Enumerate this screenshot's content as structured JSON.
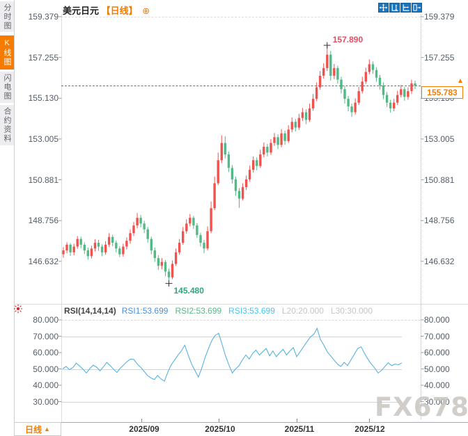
{
  "sidebar": {
    "items": [
      {
        "label": "分时图",
        "active": false
      },
      {
        "label": "K线图",
        "active": true
      },
      {
        "label": "闪电图",
        "active": false
      },
      {
        "label": "合约资料",
        "active": false
      }
    ]
  },
  "header": {
    "symbol": "美元日元",
    "period": "【日线】",
    "add_icon": "⊕"
  },
  "toolbar": {
    "icons": [
      "pan-icon",
      "y-axis-scale-icon",
      "x-axis-scale-icon",
      "exit-chart-icon"
    ]
  },
  "main_chart": {
    "y_axis_labels": [
      "159.379",
      "157.255",
      "155.130",
      "153.005",
      "150.881",
      "148.756",
      "146.632"
    ],
    "high_annotation": "157.890",
    "low_annotation": "145.480",
    "current_price": "155.783",
    "arrow_icon": "▲",
    "colors": {
      "up": "#ef5350",
      "down": "#53b987",
      "current_line": "#1e86e0",
      "high_text": "#ee4a5f",
      "low_text": "#2aa87f",
      "badge": "#f57c00"
    }
  },
  "rsi_panel": {
    "title": "RSI(14,14,14)",
    "line_color": "#58b2e2",
    "values": [
      {
        "label": "RSI1:53.699",
        "color": "#4a90d9"
      },
      {
        "label": "RSI2:53.699",
        "color": "#53b987"
      },
      {
        "label": "RSI3:53.699",
        "color": "#45c5f2"
      },
      {
        "label": "L20:20.000",
        "color": "#c4c4cc"
      },
      {
        "label": "L30:30.000",
        "color": "#c4c4cc"
      }
    ],
    "y_axis_labels": [
      "80.000",
      "70.000",
      "60.000",
      "50.000",
      "40.000",
      "30.000"
    ]
  },
  "x_axis": {
    "labels": [
      "2025/09",
      "2025/10",
      "2025/11",
      "2025/12"
    ]
  },
  "footer": {
    "period_label": "日线",
    "arrow": "▲"
  },
  "watermark": "FX678",
  "chart_data": {
    "type": "candlestick+line",
    "symbol": "美元日元 (USD/JPY)",
    "interval": "日线 daily",
    "price_axis": [
      159.379,
      157.255,
      155.13,
      153.005,
      150.881,
      148.756,
      146.632
    ],
    "high": 157.89,
    "low": 145.48,
    "last": 155.783,
    "x_ticks": [
      "2025/09",
      "2025/10",
      "2025/11",
      "2025/12"
    ],
    "ohlc_order": "open,high,low,close",
    "candles": [
      [
        147.0,
        147.38,
        146.82,
        147.2
      ],
      [
        147.2,
        147.62,
        147.05,
        147.5
      ],
      [
        147.5,
        147.58,
        146.92,
        147.1
      ],
      [
        147.1,
        147.55,
        146.95,
        147.4
      ],
      [
        147.4,
        147.95,
        147.28,
        147.8
      ],
      [
        147.8,
        147.92,
        147.32,
        147.5
      ],
      [
        147.5,
        147.62,
        147.02,
        147.2
      ],
      [
        147.2,
        147.35,
        146.72,
        146.9
      ],
      [
        146.9,
        147.45,
        146.78,
        147.3
      ],
      [
        147.3,
        147.78,
        147.15,
        147.6
      ],
      [
        147.6,
        147.75,
        147.18,
        147.4
      ],
      [
        147.4,
        147.52,
        146.9,
        147.1
      ],
      [
        147.1,
        147.68,
        146.98,
        147.5
      ],
      [
        147.5,
        148.1,
        147.38,
        147.9
      ],
      [
        147.9,
        148.02,
        147.42,
        147.6
      ],
      [
        147.6,
        147.72,
        147.1,
        147.3
      ],
      [
        147.3,
        147.42,
        146.85,
        147.0
      ],
      [
        147.0,
        147.55,
        146.88,
        147.4
      ],
      [
        147.4,
        147.88,
        147.25,
        147.7
      ],
      [
        147.7,
        148.28,
        147.55,
        148.1
      ],
      [
        148.1,
        148.68,
        147.95,
        148.5
      ],
      [
        148.5,
        149.15,
        148.35,
        148.9
      ],
      [
        148.9,
        149.05,
        148.4,
        148.6
      ],
      [
        148.6,
        148.75,
        148.1,
        148.3
      ],
      [
        148.3,
        148.42,
        147.6,
        147.8
      ],
      [
        147.8,
        147.92,
        147.0,
        147.2
      ],
      [
        147.2,
        147.35,
        146.6,
        146.8
      ],
      [
        146.8,
        146.95,
        146.18,
        146.4
      ],
      [
        146.4,
        146.8,
        146.22,
        146.6
      ],
      [
        146.6,
        146.7,
        145.85,
        146.1
      ],
      [
        146.1,
        146.25,
        145.48,
        145.8
      ],
      [
        145.8,
        146.68,
        145.7,
        146.5
      ],
      [
        146.5,
        147.3,
        146.4,
        147.1
      ],
      [
        147.1,
        147.8,
        146.98,
        147.6
      ],
      [
        147.6,
        148.42,
        147.5,
        148.2
      ],
      [
        148.2,
        148.82,
        148.08,
        148.6
      ],
      [
        148.6,
        149.1,
        148.45,
        148.9
      ],
      [
        148.9,
        149.0,
        148.32,
        148.5
      ],
      [
        148.5,
        148.62,
        147.85,
        148.0
      ],
      [
        148.0,
        148.12,
        147.4,
        147.6
      ],
      [
        147.6,
        147.75,
        147.05,
        147.3
      ],
      [
        147.3,
        148.45,
        147.2,
        148.2
      ],
      [
        148.2,
        149.75,
        148.1,
        149.4
      ],
      [
        149.4,
        151.05,
        149.3,
        150.7
      ],
      [
        150.7,
        152.3,
        150.6,
        151.9
      ],
      [
        151.9,
        153.2,
        151.75,
        152.8
      ],
      [
        152.8,
        153.15,
        152.0,
        152.2
      ],
      [
        152.2,
        152.35,
        151.28,
        151.5
      ],
      [
        151.5,
        151.65,
        150.68,
        150.9
      ],
      [
        150.9,
        151.05,
        150.05,
        150.3
      ],
      [
        150.3,
        150.45,
        149.42,
        149.9
      ],
      [
        149.9,
        150.7,
        149.8,
        150.5
      ],
      [
        150.5,
        151.1,
        150.35,
        150.9
      ],
      [
        150.9,
        151.62,
        150.78,
        151.4
      ],
      [
        151.4,
        152.1,
        151.25,
        151.9
      ],
      [
        151.9,
        152.05,
        151.38,
        151.6
      ],
      [
        151.6,
        152.45,
        151.5,
        152.2
      ],
      [
        152.2,
        152.82,
        152.05,
        152.6
      ],
      [
        152.6,
        152.75,
        152.1,
        152.3
      ],
      [
        152.3,
        153.0,
        152.18,
        152.8
      ],
      [
        152.8,
        153.32,
        152.65,
        153.1
      ],
      [
        153.1,
        153.25,
        152.48,
        152.7
      ],
      [
        152.7,
        153.52,
        152.58,
        153.3
      ],
      [
        153.3,
        153.45,
        152.7,
        152.9
      ],
      [
        152.9,
        153.72,
        152.8,
        153.5
      ],
      [
        153.5,
        154.12,
        153.35,
        153.9
      ],
      [
        153.9,
        154.05,
        153.4,
        153.6
      ],
      [
        153.6,
        154.32,
        153.48,
        154.1
      ],
      [
        154.1,
        154.62,
        153.95,
        154.4
      ],
      [
        154.4,
        154.55,
        153.78,
        154.0
      ],
      [
        154.0,
        154.85,
        153.9,
        154.6
      ],
      [
        154.6,
        155.35,
        154.48,
        155.1
      ],
      [
        155.1,
        155.95,
        154.98,
        155.7
      ],
      [
        155.7,
        156.55,
        155.58,
        156.3
      ],
      [
        156.3,
        156.95,
        156.15,
        156.7
      ],
      [
        156.7,
        157.89,
        156.55,
        157.4
      ],
      [
        157.4,
        157.6,
        156.05,
        156.3
      ],
      [
        156.3,
        156.92,
        156.12,
        156.7
      ],
      [
        156.7,
        156.82,
        155.88,
        156.1
      ],
      [
        156.1,
        156.25,
        155.38,
        155.6
      ],
      [
        155.6,
        155.75,
        154.85,
        155.1
      ],
      [
        155.1,
        155.25,
        154.45,
        154.7
      ],
      [
        154.7,
        154.85,
        154.15,
        154.4
      ],
      [
        154.4,
        155.12,
        154.28,
        154.9
      ],
      [
        154.9,
        155.72,
        154.78,
        155.5
      ],
      [
        155.5,
        156.25,
        155.38,
        156.0
      ],
      [
        156.0,
        156.72,
        155.88,
        156.5
      ],
      [
        156.5,
        157.15,
        156.38,
        156.9
      ],
      [
        156.9,
        157.05,
        156.4,
        156.6
      ],
      [
        156.6,
        156.75,
        155.98,
        156.2
      ],
      [
        156.2,
        156.35,
        155.58,
        155.8
      ],
      [
        155.8,
        155.95,
        155.08,
        155.3
      ],
      [
        155.3,
        155.45,
        154.68,
        154.9
      ],
      [
        154.9,
        155.05,
        154.38,
        154.6
      ],
      [
        154.6,
        155.1,
        154.45,
        154.9
      ],
      [
        154.9,
        155.52,
        154.78,
        155.3
      ],
      [
        155.3,
        155.82,
        155.18,
        155.6
      ],
      [
        155.6,
        155.72,
        155.0,
        155.2
      ],
      [
        155.2,
        155.7,
        155.05,
        155.5
      ],
      [
        155.5,
        156.1,
        155.35,
        155.9
      ],
      [
        155.9,
        156.05,
        155.6,
        155.783
      ]
    ],
    "rsi": {
      "period": "14,14,14",
      "last": 53.699,
      "axis": [
        80,
        70,
        60,
        50,
        40,
        30
      ],
      "levels_shown": {
        "L20": 20.0,
        "L30": 30.0
      },
      "values": [
        50.0,
        51.5,
        49.5,
        50.8,
        53.5,
        51.8,
        49.8,
        47.5,
        50.2,
        52.3,
        51.0,
        48.8,
        51.2,
        54.0,
        52.0,
        49.8,
        47.8,
        50.5,
        52.5,
        54.5,
        56.0,
        55.8,
        53.0,
        51.0,
        48.5,
        46.0,
        44.5,
        43.5,
        46.0,
        43.8,
        42.5,
        48.0,
        52.5,
        55.5,
        58.5,
        61.0,
        64.5,
        58.5,
        53.0,
        49.0,
        45.0,
        50.5,
        57.0,
        62.5,
        67.5,
        70.5,
        71.8,
        65.0,
        58.0,
        52.5,
        47.5,
        50.0,
        52.0,
        55.5,
        58.5,
        56.0,
        59.5,
        61.5,
        58.5,
        60.5,
        62.5,
        58.0,
        61.0,
        57.5,
        60.0,
        62.0,
        58.5,
        61.0,
        63.0,
        57.5,
        60.5,
        63.5,
        66.5,
        69.5,
        71.0,
        74.8,
        68.0,
        64.5,
        60.5,
        58.0,
        55.5,
        53.0,
        51.5,
        54.0,
        52.0,
        55.5,
        59.0,
        62.5,
        63.5,
        59.5,
        56.0,
        53.0,
        50.5,
        47.5,
        49.0,
        51.5,
        53.7,
        52.0,
        53.0,
        52.5,
        53.7
      ]
    }
  }
}
